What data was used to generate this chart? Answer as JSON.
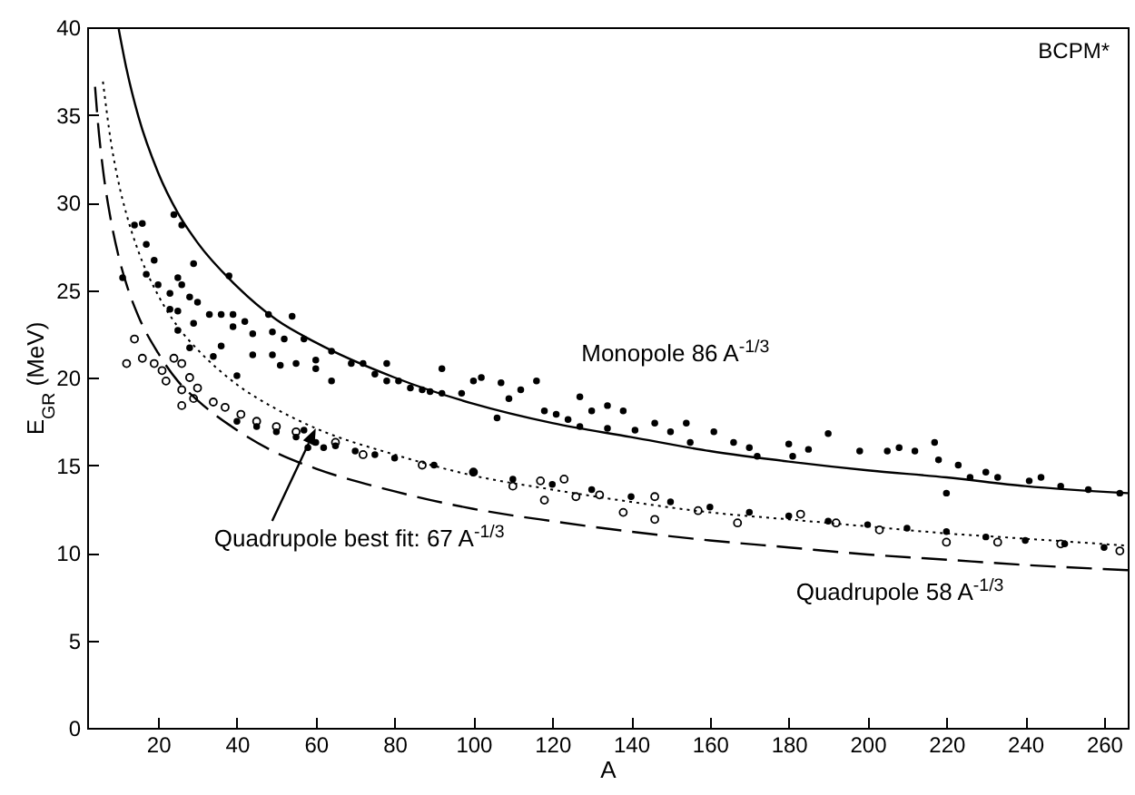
{
  "chart_data": {
    "type": "scatter",
    "xlabel": "A",
    "ylabel": "E$_{GR}$ (MeV)",
    "xlim": [
      2,
      266
    ],
    "ylim": [
      0,
      40
    ],
    "xticks": [
      20,
      40,
      60,
      80,
      100,
      120,
      140,
      160,
      180,
      200,
      220,
      240,
      260
    ],
    "yticks": [
      0,
      5,
      10,
      15,
      20,
      25,
      30,
      35,
      40
    ],
    "grid": false,
    "annotations": [
      "BCPM*",
      {
        "text": "Quadrupole best fit:  67 A$^{-1/3}$",
        "x": 60,
        "y": 17.1
      }
    ],
    "series": [
      {
        "color": "#000000",
        "marker": "circle",
        "x": [
          14,
          16,
          24,
          26,
          17,
          11,
          17,
          29,
          38,
          19,
          20,
          25,
          23,
          26,
          28,
          30,
          23,
          25,
          33,
          36,
          25,
          29,
          39,
          39,
          42,
          44,
          28,
          36,
          40,
          34,
          48,
          54,
          49,
          52,
          57,
          44,
          49,
          51,
          55,
          60,
          60,
          64,
          64,
          69,
          72,
          78,
          75,
          81,
          84,
          87,
          89,
          78,
          92,
          92,
          97,
          100,
          102,
          107,
          106,
          109,
          112,
          116,
          118,
          121,
          124,
          127,
          130,
          134,
          138,
          127,
          134,
          141,
          146,
          150,
          154,
          155,
          161,
          166,
          170,
          172,
          180,
          181,
          190,
          185,
          198,
          205,
          208,
          212,
          217,
          218,
          220,
          223,
          226,
          230,
          233,
          241,
          244,
          249,
          256,
          264,
          40,
          45,
          50,
          55,
          60,
          62,
          65,
          70,
          75,
          80,
          90,
          100,
          110,
          120,
          130,
          140,
          150,
          160,
          170,
          180,
          190,
          200,
          210,
          220,
          230,
          240,
          250,
          260,
          57,
          58
        ],
        "values": [
          28.7,
          28.8,
          29.3,
          28.7,
          27.6,
          25.7,
          25.9,
          26.5,
          25.8,
          26.7,
          25.3,
          25.7,
          24.8,
          25.3,
          24.6,
          24.3,
          23.9,
          23.8,
          23.6,
          23.6,
          22.7,
          23.1,
          23.6,
          22.9,
          23.2,
          22.5,
          21.7,
          21.8,
          20.1,
          21.2,
          23.6,
          23.5,
          22.6,
          22.2,
          22.2,
          21.3,
          21.3,
          20.7,
          20.8,
          21.0,
          20.5,
          21.5,
          19.8,
          20.8,
          20.8,
          20.8,
          20.2,
          19.8,
          19.4,
          19.3,
          19.2,
          19.8,
          20.5,
          19.1,
          19.1,
          19.8,
          20.0,
          19.7,
          17.7,
          18.8,
          19.3,
          19.8,
          18.1,
          17.9,
          17.6,
          18.9,
          18.1,
          18.4,
          18.1,
          17.2,
          17.1,
          17.0,
          17.4,
          16.9,
          17.4,
          16.3,
          16.9,
          16.3,
          16.0,
          15.5,
          16.2,
          15.5,
          16.8,
          15.9,
          15.8,
          15.8,
          16.0,
          15.8,
          16.3,
          15.3,
          13.4,
          15.0,
          14.3,
          14.6,
          14.3,
          14.1,
          14.3,
          13.8,
          13.6,
          13.4,
          17.5,
          17.2,
          16.9,
          16.6,
          16.3,
          16.0,
          16.1,
          15.8,
          15.6,
          15.4,
          15.0,
          14.6,
          14.2,
          13.9,
          13.6,
          13.2,
          12.9,
          12.6,
          12.3,
          12.1,
          11.8,
          11.6,
          11.4,
          11.2,
          10.9,
          10.7,
          10.5,
          10.3,
          17.0,
          16.0
        ]
      },
      {
        "color": "#000000",
        "marker": "circle",
        "x": [
          12,
          14,
          16,
          19,
          21,
          24,
          26,
          22,
          26,
          28,
          30,
          29,
          26,
          34,
          37,
          41,
          45,
          50,
          55,
          65,
          72,
          87,
          100,
          110,
          117,
          123,
          118,
          126,
          132,
          138,
          146,
          146,
          157,
          167,
          183,
          192,
          203,
          220,
          233,
          249,
          264
        ],
        "values": [
          20.8,
          22.2,
          21.1,
          20.8,
          20.4,
          21.1,
          20.8,
          19.8,
          19.3,
          20.0,
          19.4,
          18.8,
          18.4,
          18.6,
          18.3,
          17.9,
          17.5,
          17.2,
          16.9,
          16.3,
          15.6,
          15.0,
          14.6,
          13.8,
          14.1,
          14.2,
          13.0,
          13.2,
          13.3,
          12.3,
          13.2,
          11.9,
          12.4,
          11.7,
          12.2,
          11.7,
          11.3,
          10.6,
          10.6,
          10.5,
          10.1
        ]
      },
      {
        "type": "line",
        "name": "Monopole 86 A$^{-1/3}$",
        "color": "#000000",
        "line_style": "solid",
        "x": [
          10,
          12,
          15,
          20,
          25,
          30,
          40,
          50,
          60,
          80,
          100,
          120,
          140,
          160,
          180,
          200,
          220,
          240,
          266
        ],
        "values": [
          39.9,
          37.6,
          34.9,
          31.7,
          29.4,
          27.7,
          25.2,
          23.3,
          22.0,
          20.0,
          18.5,
          17.4,
          16.6,
          15.8,
          15.2,
          14.7,
          14.3,
          13.8,
          13.4
        ]
      },
      {
        "type": "line",
        "name": "Quadrupole 58 A$^{-1/3}$",
        "color": "#000000",
        "line_style": "dashed",
        "x": [
          4,
          5,
          6,
          8,
          10,
          12,
          15,
          20,
          25,
          30,
          40,
          50,
          60,
          80,
          100,
          120,
          140,
          160,
          180,
          200,
          220,
          240,
          266
        ],
        "values": [
          36.6,
          33.9,
          31.9,
          29.0,
          26.9,
          25.3,
          23.5,
          21.4,
          19.8,
          18.7,
          17.0,
          15.7,
          14.8,
          13.5,
          12.5,
          11.8,
          11.2,
          10.7,
          10.3,
          9.9,
          9.6,
          9.3,
          9.0
        ]
      },
      {
        "type": "line",
        "color": "#000000",
        "line_style": "dotted",
        "x": [
          6,
          8,
          10,
          12,
          15,
          20,
          25,
          30,
          40,
          50,
          60,
          80,
          100,
          120,
          140,
          160,
          180,
          200,
          220,
          240,
          266
        ],
        "values": [
          36.9,
          33.5,
          31.1,
          29.3,
          27.2,
          24.7,
          22.9,
          21.6,
          19.6,
          18.2,
          17.1,
          15.6,
          14.4,
          13.6,
          12.9,
          12.3,
          11.9,
          11.5,
          11.1,
          10.8,
          10.4
        ]
      }
    ]
  }
}
